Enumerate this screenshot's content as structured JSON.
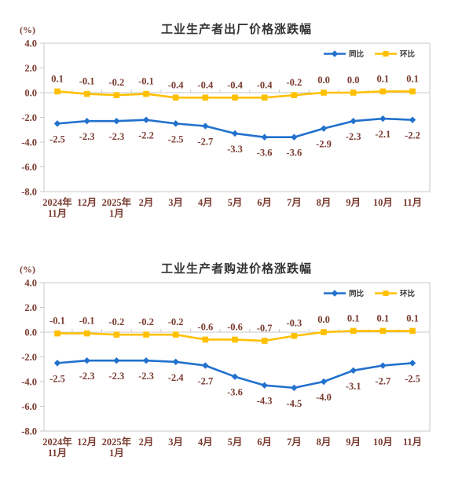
{
  "style": {
    "accent_blue": "#2171cd",
    "accent_yellow": "#ffc000",
    "label_color": "#7a3b30",
    "axis_color": "#c8c8c8",
    "title_color": "#333333",
    "legend_text_color": "#333333",
    "background": "#ffffff"
  },
  "chart_data": [
    {
      "type": "line",
      "title": "工业生产者出厂价格涨跌幅",
      "ylabel": "(%)",
      "ylim": [
        -8.0,
        4.0
      ],
      "yticks": [
        4.0,
        2.0,
        0.0,
        -2.0,
        -4.0,
        -6.0,
        -8.0
      ],
      "grid": false,
      "legend_position": "top-right",
      "categories": [
        "2024年\n11月",
        "12月",
        "2025年\n1月",
        "2月",
        "3月",
        "4月",
        "5月",
        "6月",
        "7月",
        "8月",
        "9月",
        "10月",
        "11月"
      ],
      "series": [
        {
          "name": "同比",
          "color": "#2171cd",
          "marker": "diamond",
          "label_side": "below",
          "values": [
            -2.5,
            -2.3,
            -2.3,
            -2.2,
            -2.5,
            -2.7,
            -3.3,
            -3.6,
            -3.6,
            -2.9,
            -2.3,
            -2.1,
            -2.2
          ]
        },
        {
          "name": "环比",
          "color": "#ffc000",
          "marker": "square",
          "label_side": "above",
          "values": [
            0.1,
            -0.1,
            -0.2,
            -0.1,
            -0.4,
            -0.4,
            -0.4,
            -0.4,
            -0.2,
            0.0,
            0.0,
            0.1,
            0.1
          ]
        }
      ]
    },
    {
      "type": "line",
      "title": "工业生产者购进价格涨跌幅",
      "ylabel": "(%)",
      "ylim": [
        -8.0,
        4.0
      ],
      "yticks": [
        4.0,
        2.0,
        0.0,
        -2.0,
        -4.0,
        -6.0,
        -8.0
      ],
      "grid": false,
      "legend_position": "top-right",
      "categories": [
        "2024年\n11月",
        "12月",
        "2025年\n1月",
        "2月",
        "3月",
        "4月",
        "5月",
        "6月",
        "7月",
        "8月",
        "9月",
        "10月",
        "11月"
      ],
      "series": [
        {
          "name": "同比",
          "color": "#2171cd",
          "marker": "diamond",
          "label_side": "below",
          "values": [
            -2.5,
            -2.3,
            -2.3,
            -2.3,
            -2.4,
            -2.7,
            -3.6,
            -4.3,
            -4.5,
            -4.0,
            -3.1,
            -2.7,
            -2.5
          ]
        },
        {
          "name": "环比",
          "color": "#ffc000",
          "marker": "square",
          "label_side": "above",
          "values": [
            -0.1,
            -0.1,
            -0.2,
            -0.2,
            -0.2,
            -0.6,
            -0.6,
            -0.7,
            -0.3,
            0.0,
            0.1,
            0.1,
            0.1
          ]
        }
      ]
    }
  ]
}
